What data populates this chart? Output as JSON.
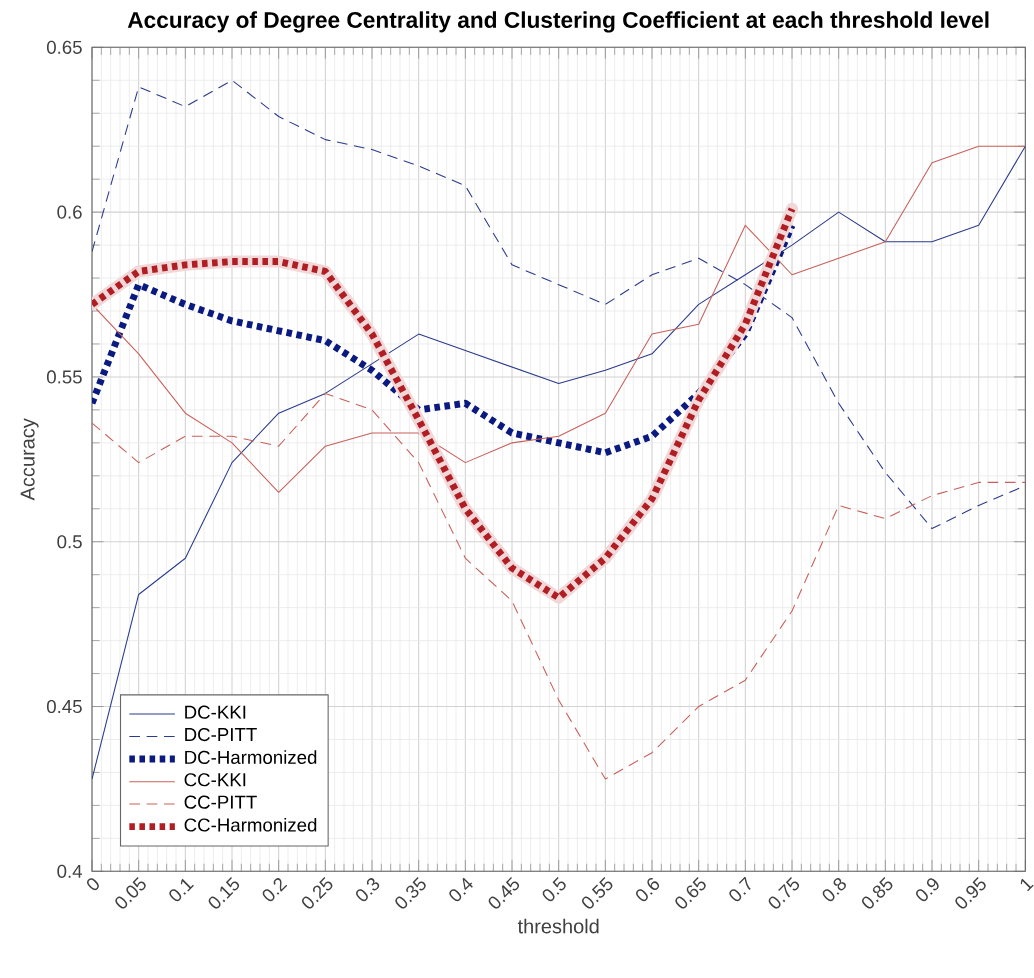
{
  "chart_data": {
    "type": "line",
    "title": "**Accuracy of Degree Centrality and Clustering Coefficient at each threshold level**",
    "xlabel": "threshold",
    "ylabel": "Accuracy",
    "x": [
      0,
      0.05,
      0.1,
      0.15,
      0.2,
      0.25,
      0.3,
      0.35,
      0.4,
      0.45,
      0.5,
      0.55,
      0.6,
      0.65,
      0.7,
      0.75,
      0.8,
      0.85,
      0.9,
      0.95,
      1
    ],
    "series": [
      {
        "name": "DC-KKI",
        "color": "#2b3a8c",
        "line_style": "solid",
        "values": [
          0.428,
          0.484,
          0.495,
          0.524,
          0.539,
          0.545,
          0.554,
          0.563,
          0.558,
          0.553,
          0.548,
          0.552,
          0.557,
          0.572,
          0.581,
          0.59,
          0.6,
          0.591,
          0.591,
          0.596,
          0.62
        ]
      },
      {
        "name": "DC-PITT",
        "color": "#2b3a8c",
        "line_style": "dashed",
        "values": [
          0.588,
          0.638,
          0.632,
          0.64,
          0.629,
          0.622,
          0.619,
          0.614,
          0.608,
          0.584,
          0.578,
          0.572,
          0.581,
          0.586,
          0.578,
          0.568,
          0.542,
          0.521,
          0.504,
          0.511,
          0.517
        ]
      },
      {
        "name": "DC-Harmonized",
        "color": "#0a1a80",
        "line_style": "dotted",
        "values": [
          0.542,
          0.578,
          0.572,
          0.567,
          0.564,
          0.561,
          0.552,
          0.54,
          0.542,
          0.533,
          0.53,
          0.527,
          0.532,
          0.545,
          0.563,
          0.596,
          null,
          null,
          null,
          null,
          null
        ]
      },
      {
        "name": "CC-KKI",
        "color": "#c8605a",
        "line_style": "solid",
        "values": [
          0.572,
          0.557,
          0.539,
          0.53,
          0.515,
          0.529,
          0.533,
          0.533,
          0.524,
          0.53,
          0.532,
          0.539,
          0.563,
          0.566,
          0.596,
          0.581,
          0.586,
          0.591,
          0.615,
          0.62,
          0.62
        ]
      },
      {
        "name": "CC-PITT",
        "color": "#c8605a",
        "line_style": "dashed",
        "values": [
          0.536,
          0.524,
          0.532,
          0.532,
          0.529,
          0.545,
          0.54,
          0.524,
          0.495,
          0.482,
          0.452,
          0.428,
          0.436,
          0.45,
          0.458,
          0.479,
          0.511,
          0.507,
          0.514,
          0.518,
          0.518
        ]
      },
      {
        "name": "CC-Harmonized",
        "color": "#b01e24",
        "line_style": "dotted",
        "values": [
          0.572,
          0.582,
          0.584,
          0.585,
          0.585,
          0.582,
          0.563,
          0.537,
          0.51,
          0.492,
          0.483,
          0.495,
          0.513,
          0.543,
          0.566,
          0.601,
          null,
          null,
          null,
          null,
          null
        ]
      }
    ],
    "xlim": [
      0,
      1
    ],
    "ylim": [
      0.4,
      0.65
    ],
    "xticks": [
      0,
      0.05,
      0.1,
      0.15,
      0.2,
      0.25,
      0.3,
      0.35,
      0.4,
      0.45,
      0.5,
      0.55,
      0.6,
      0.65,
      0.7,
      0.75,
      0.8,
      0.85,
      0.9,
      0.95,
      1
    ],
    "yticks": [
      0.4,
      0.45,
      0.5,
      0.55,
      0.6,
      0.65
    ],
    "grid": true,
    "legend": "bottom left"
  }
}
